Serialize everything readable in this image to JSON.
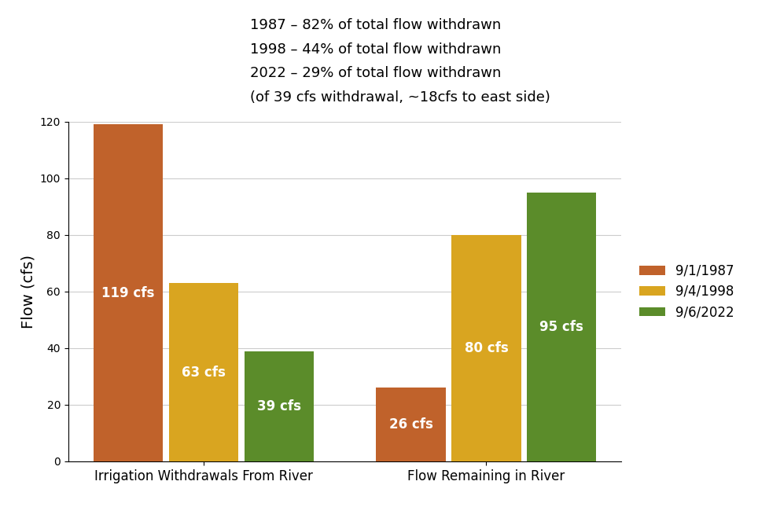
{
  "chart_data": {
    "type": "bar",
    "y_label": "Flow (cfs)",
    "annotations": [
      "1987 – 82% of total flow withdrawn",
      "1998 – 44% of total flow withdrawn",
      "2022 – 29% of total flow withdrawn",
      "(of 39 cfs withdrawal, ~18cfs to east side)"
    ],
    "categories": [
      "Irrigation Withdrawals From River",
      "Flow Remaining in River"
    ],
    "series": [
      {
        "name": "9/1/1987",
        "color": "#c0622b",
        "values": [
          119,
          26
        ],
        "value_labels": [
          "119 cfs",
          "26 cfs"
        ]
      },
      {
        "name": "9/4/1998",
        "color": "#d9a520",
        "values": [
          63,
          80
        ],
        "value_labels": [
          "63 cfs",
          "80 cfs"
        ]
      },
      {
        "name": "9/6/2022",
        "color": "#5b8c2a",
        "values": [
          39,
          95
        ],
        "value_labels": [
          "39 cfs",
          "95 cfs"
        ]
      }
    ],
    "ylim": [
      0,
      120
    ],
    "yticks": [
      0,
      20,
      40,
      60,
      80,
      100,
      120
    ],
    "grid": true,
    "legend": "right",
    "data_labels": true
  }
}
